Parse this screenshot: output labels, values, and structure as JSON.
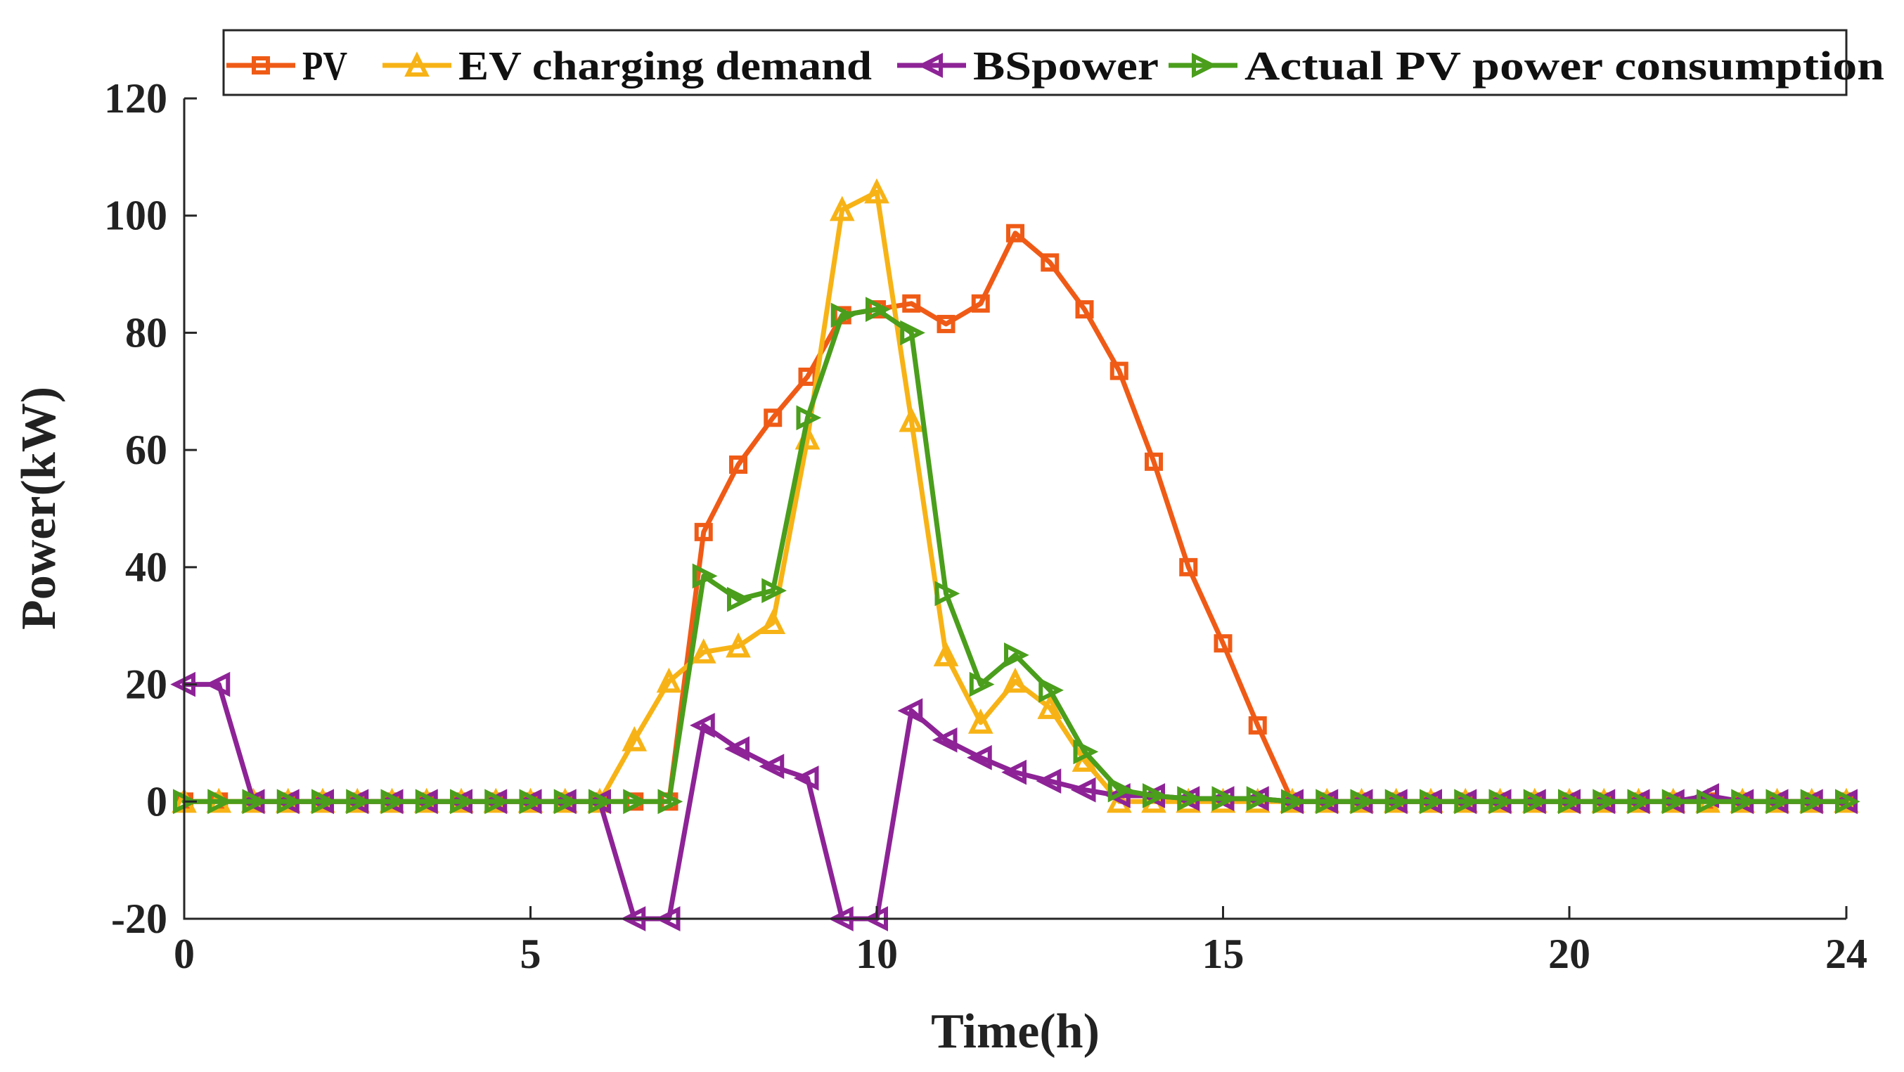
{
  "chart_data": {
    "type": "line",
    "title": "",
    "xlabel": "Time(h)",
    "ylabel": "Power(kW)",
    "xlim": [
      0,
      24
    ],
    "ylim": [
      -20,
      120
    ],
    "xticks": [
      0,
      5,
      10,
      15,
      20,
      24
    ],
    "yticks": [
      -20,
      0,
      20,
      40,
      60,
      80,
      100,
      120
    ],
    "xtick_labels": [
      "0",
      "5",
      "10",
      "15",
      "20",
      "24"
    ],
    "ytick_labels": [
      "-20",
      "0",
      "20",
      "40",
      "60",
      "80",
      "100",
      "120"
    ],
    "grid": false,
    "legend_position": "top",
    "x": [
      0,
      0.5,
      1,
      1.5,
      2,
      2.5,
      3,
      3.5,
      4,
      4.5,
      5,
      5.5,
      6,
      6.5,
      7,
      7.5,
      8,
      8.5,
      9,
      9.5,
      10,
      10.5,
      11,
      11.5,
      12,
      12.5,
      13,
      13.5,
      14,
      14.5,
      15,
      15.5,
      16,
      16.5,
      17,
      17.5,
      18,
      18.5,
      19,
      19.5,
      20,
      20.5,
      21,
      21.5,
      22,
      22.5,
      23,
      23.5,
      24
    ],
    "series": [
      {
        "name": "PV",
        "color": "#ef5b16",
        "marker": "square",
        "values": [
          0,
          0,
          0,
          0,
          0,
          0,
          0,
          0,
          0,
          0,
          0,
          0,
          0,
          0,
          0,
          46,
          57.5,
          65.5,
          72.5,
          83,
          84,
          85,
          81.5,
          85,
          97,
          92,
          84,
          73.5,
          58,
          40,
          27,
          13,
          0,
          0,
          0,
          0,
          0,
          0,
          0,
          0,
          0,
          0,
          0,
          0,
          0,
          0,
          0,
          0,
          0
        ]
      },
      {
        "name": "EV charging demand",
        "color": "#f7b316",
        "marker": "triangle-up",
        "values": [
          0,
          0,
          0,
          0,
          0,
          0,
          0,
          0,
          0,
          0,
          0,
          0,
          0,
          10.5,
          20.5,
          25.5,
          26.5,
          30.5,
          62,
          101,
          104,
          65,
          25,
          13.5,
          20.5,
          16,
          7,
          0,
          0,
          0,
          0,
          0,
          0,
          0,
          0,
          0,
          0,
          0,
          0,
          0,
          0,
          0,
          0,
          0,
          0,
          0,
          0,
          0,
          0
        ]
      },
      {
        "name": "BSpower",
        "color": "#8d2396",
        "marker": "triangle-left",
        "values": [
          20,
          20,
          0,
          0,
          0,
          0,
          0,
          0,
          0,
          0,
          0,
          0,
          0,
          -20,
          -20,
          13,
          9,
          6,
          4,
          -20,
          -20,
          15.5,
          10.5,
          7.5,
          5,
          3.5,
          2,
          1,
          1,
          0.5,
          0.5,
          0.5,
          0,
          0,
          0,
          0,
          0,
          0,
          0,
          0,
          0,
          0,
          0,
          0,
          1,
          0,
          0,
          0,
          0
        ]
      },
      {
        "name": "Actual PV power consumption",
        "color": "#4a9e1c",
        "marker": "triangle-right",
        "values": [
          0,
          0,
          0,
          0,
          0,
          0,
          0,
          0,
          0,
          0,
          0,
          0,
          0,
          0,
          0,
          38.5,
          34.5,
          36,
          65.5,
          83,
          84,
          80,
          35.5,
          20,
          25,
          19,
          8.5,
          2,
          1,
          0.5,
          0.5,
          0.5,
          0,
          0,
          0,
          0,
          0,
          0,
          0,
          0,
          0,
          0,
          0,
          0,
          0,
          0,
          0,
          0,
          0
        ]
      }
    ]
  }
}
